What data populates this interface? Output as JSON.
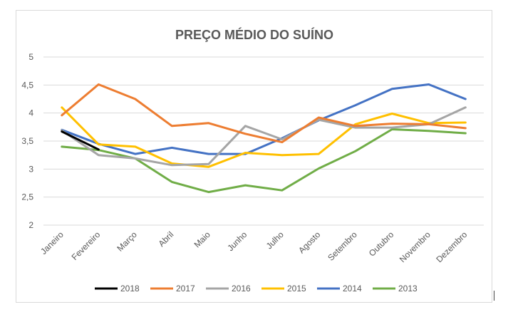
{
  "chart_data": {
    "type": "line",
    "title": "PREÇO MÉDIO DO SUÍNO",
    "xlabel": "",
    "ylabel": "",
    "ylim": [
      2,
      5
    ],
    "yticks": [
      "2",
      "2,5",
      "3",
      "3,5",
      "4",
      "4,5",
      "5"
    ],
    "ytick_values": [
      2,
      2.5,
      3,
      3.5,
      4,
      4.5,
      5
    ],
    "categories": [
      "Janeiro",
      "Fevereiro",
      "Março",
      "Abril",
      "Maio",
      "Junho",
      "Julho",
      "Agosto",
      "Setembro",
      "Outubro",
      "Novembro",
      "Dezembro"
    ],
    "legend_position": "bottom",
    "grid": true,
    "series": [
      {
        "name": "2018",
        "color": "#000000",
        "values": [
          3.67,
          3.35,
          null,
          null,
          null,
          null,
          null,
          null,
          null,
          null,
          null,
          null
        ]
      },
      {
        "name": "2017",
        "color": "#ED7D31",
        "values": [
          3.96,
          4.51,
          4.25,
          3.77,
          3.82,
          3.63,
          3.48,
          3.92,
          3.77,
          3.81,
          3.8,
          3.73
        ]
      },
      {
        "name": "2016",
        "color": "#A5A5A5",
        "values": [
          3.69,
          3.25,
          3.19,
          3.07,
          3.09,
          3.77,
          3.53,
          3.88,
          3.74,
          3.74,
          3.8,
          4.1
        ]
      },
      {
        "name": "2015",
        "color": "#FFC000",
        "values": [
          4.1,
          3.44,
          3.4,
          3.1,
          3.04,
          3.29,
          3.25,
          3.27,
          3.8,
          3.99,
          3.82,
          3.83
        ]
      },
      {
        "name": "2014",
        "color": "#4472C4",
        "values": [
          3.7,
          3.45,
          3.27,
          3.38,
          3.27,
          3.27,
          3.55,
          3.87,
          4.14,
          4.43,
          4.51,
          4.25
        ]
      },
      {
        "name": "2013",
        "color": "#70AD47",
        "values": [
          3.4,
          3.34,
          3.19,
          2.77,
          2.59,
          2.71,
          2.62,
          3.01,
          3.32,
          3.71,
          3.68,
          3.64
        ]
      }
    ]
  }
}
